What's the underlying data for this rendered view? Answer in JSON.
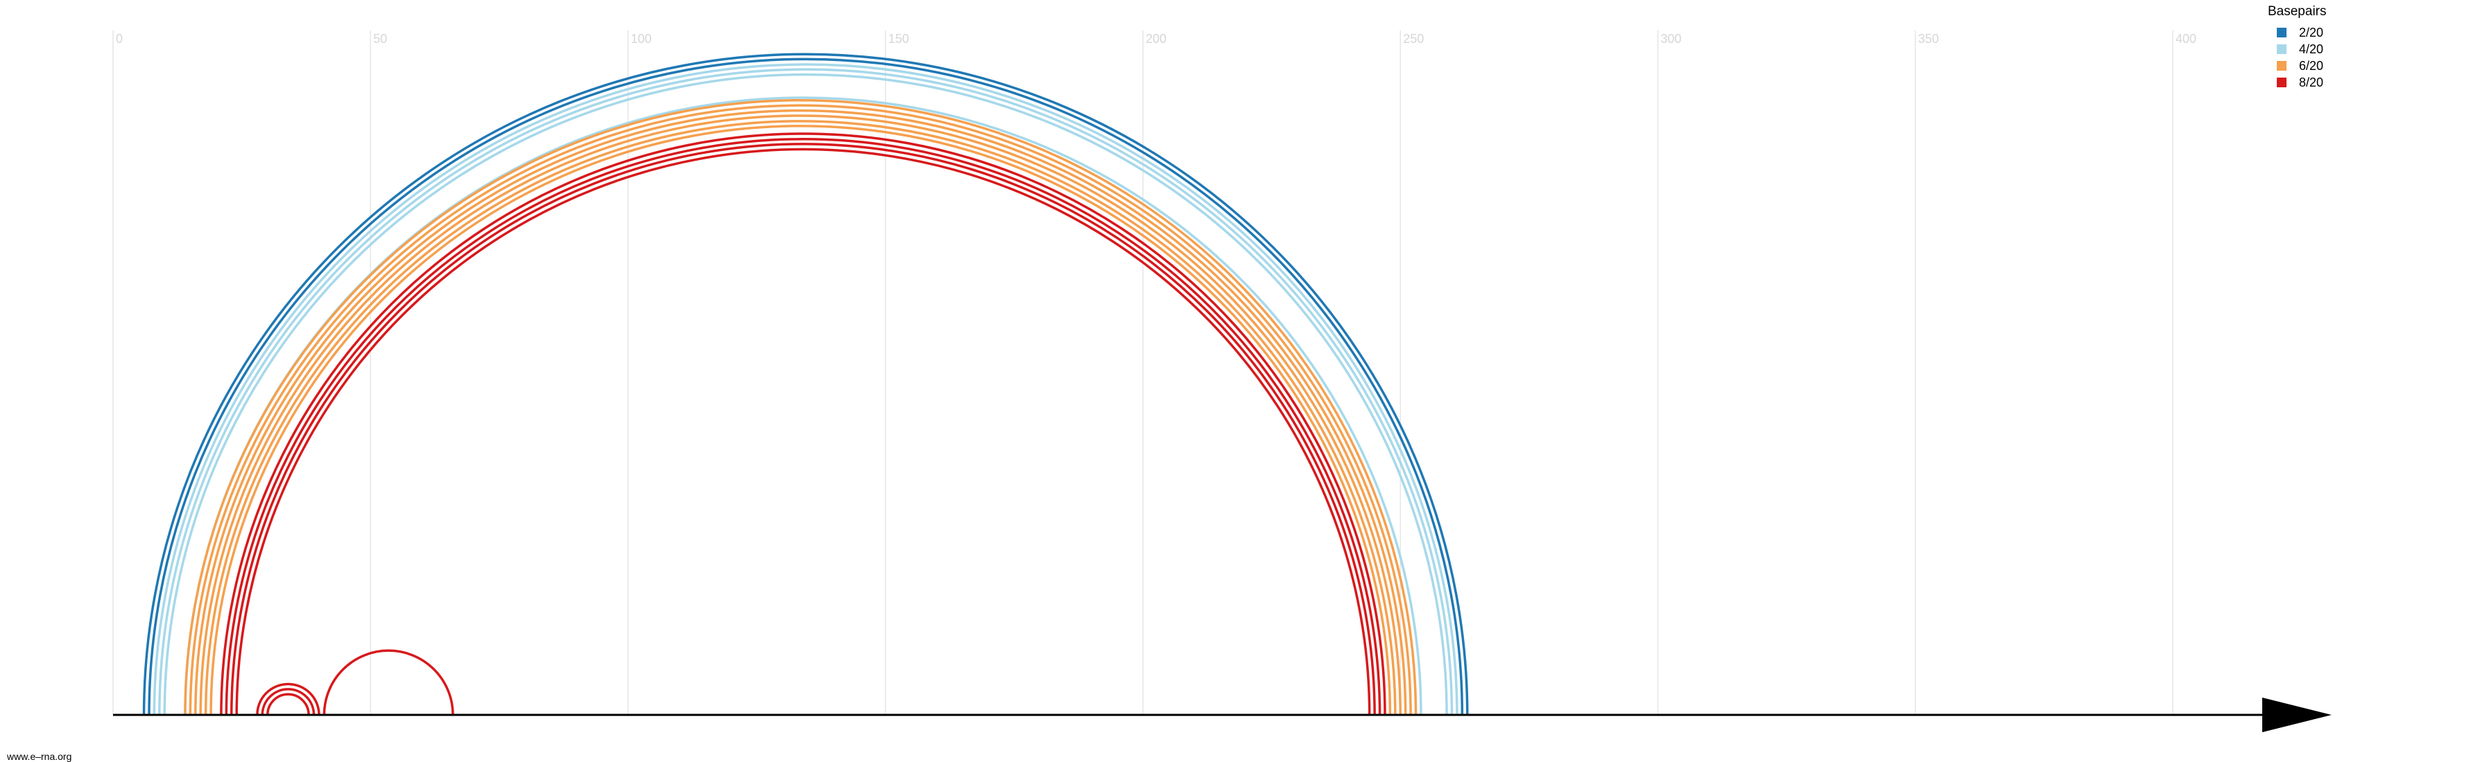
{
  "chart_data": {
    "type": "arc-diagram",
    "x_ticks": [
      "0",
      "50",
      "100",
      "150",
      "200",
      "250",
      "300",
      "350",
      "400"
    ],
    "legend": {
      "title": "Basepairs",
      "entries": [
        {
          "label": "2/20",
          "color": "#1f78b4"
        },
        {
          "label": "4/20",
          "color": "#a6d8ea"
        },
        {
          "label": "6/20",
          "color": "#f5a04e"
        },
        {
          "label": "8/20",
          "color": "#d7191c"
        }
      ]
    },
    "arcs": [
      {
        "i": 6,
        "j": 263,
        "group": "2/20"
      },
      {
        "i": 7,
        "j": 262,
        "group": "2/20"
      },
      {
        "i": 8,
        "j": 261,
        "group": "4/20"
      },
      {
        "i": 9,
        "j": 260,
        "group": "4/20"
      },
      {
        "i": 10,
        "j": 259,
        "group": "4/20"
      },
      {
        "i": 14,
        "j": 254,
        "group": "4/20"
      },
      {
        "i": 14,
        "j": 253,
        "group": "6/20"
      },
      {
        "i": 15,
        "j": 252,
        "group": "6/20"
      },
      {
        "i": 16,
        "j": 251,
        "group": "6/20"
      },
      {
        "i": 17,
        "j": 250,
        "group": "6/20"
      },
      {
        "i": 18,
        "j": 249,
        "group": "6/20"
      },
      {
        "i": 19,
        "j": 248,
        "group": "6/20"
      },
      {
        "i": 21,
        "j": 247,
        "group": "8/20"
      },
      {
        "i": 22,
        "j": 246,
        "group": "8/20"
      },
      {
        "i": 23,
        "j": 245,
        "group": "8/20"
      },
      {
        "i": 24,
        "j": 244,
        "group": "8/20"
      },
      {
        "i": 28,
        "j": 40,
        "group": "8/20"
      },
      {
        "i": 29,
        "j": 39,
        "group": "8/20"
      },
      {
        "i": 30,
        "j": 38,
        "group": "8/20"
      },
      {
        "i": 41,
        "j": 66,
        "group": "8/20"
      }
    ],
    "grid": true,
    "legend_position": "top-right"
  },
  "footer": {
    "text": "www.e–rna.org"
  }
}
